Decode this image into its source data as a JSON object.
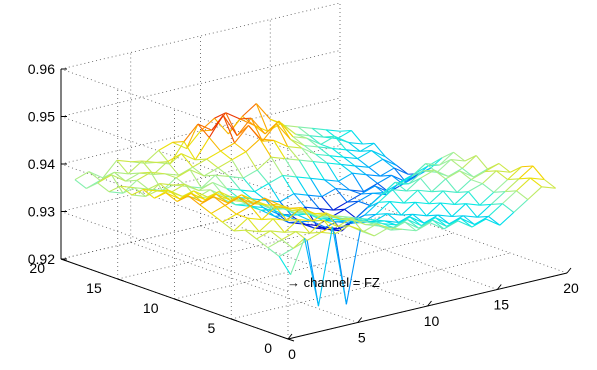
{
  "chart_data": {
    "type": "surface-mesh",
    "zlim": [
      0.92,
      0.96
    ],
    "z_ticks": [
      "0.92",
      "0.93",
      "0.94",
      "0.95",
      "0.96"
    ],
    "x_ticks": [
      "0",
      "5",
      "10",
      "15",
      "20"
    ],
    "y_ticks": [
      "0",
      "5",
      "10",
      "15",
      "20"
    ],
    "xlim": [
      0,
      20
    ],
    "ylim": [
      0,
      20
    ],
    "grid": true,
    "colormap": [
      "#0000cc",
      "#00a0ff",
      "#00e8e8",
      "#a0f0a0",
      "#f0e000",
      "#ff9000",
      "#e00000"
    ],
    "annotation": "→ channel = FZ",
    "grid_size": 20,
    "surface_rows_note": "approximate surface, rows indexed by y = 1..20 from back to front, columns x = 1..20",
    "z_values": [
      [
        0.936,
        0.937,
        0.935,
        0.938,
        0.937,
        0.936,
        0.938,
        0.939,
        0.937,
        0.94,
        0.942,
        0.938,
        0.941,
        0.943,
        0.939,
        0.937,
        0.936,
        0.935,
        0.934,
        0.933
      ],
      [
        0.935,
        0.936,
        0.937,
        0.936,
        0.938,
        0.937,
        0.936,
        0.94,
        0.943,
        0.941,
        0.944,
        0.942,
        0.94,
        0.938,
        0.939,
        0.936,
        0.935,
        0.934,
        0.933,
        0.934
      ],
      [
        0.937,
        0.938,
        0.936,
        0.937,
        0.936,
        0.938,
        0.939,
        0.937,
        0.941,
        0.945,
        0.94,
        0.943,
        0.939,
        0.941,
        0.937,
        0.936,
        0.934,
        0.935,
        0.933,
        0.932
      ],
      [
        0.936,
        0.935,
        0.937,
        0.938,
        0.937,
        0.936,
        0.937,
        0.938,
        0.939,
        0.94,
        0.943,
        0.939,
        0.942,
        0.938,
        0.936,
        0.935,
        0.934,
        0.933,
        0.932,
        0.933
      ],
      [
        0.938,
        0.937,
        0.936,
        0.935,
        0.937,
        0.938,
        0.936,
        0.937,
        0.938,
        0.939,
        0.941,
        0.94,
        0.938,
        0.937,
        0.935,
        0.934,
        0.933,
        0.932,
        0.933,
        0.931
      ],
      [
        0.937,
        0.936,
        0.938,
        0.937,
        0.936,
        0.935,
        0.937,
        0.936,
        0.935,
        0.936,
        0.938,
        0.937,
        0.936,
        0.935,
        0.934,
        0.933,
        0.932,
        0.931,
        0.932,
        0.93
      ],
      [
        0.939,
        0.938,
        0.937,
        0.938,
        0.936,
        0.937,
        0.935,
        0.934,
        0.933,
        0.934,
        0.935,
        0.934,
        0.933,
        0.932,
        0.931,
        0.932,
        0.931,
        0.93,
        0.931,
        0.929
      ],
      [
        0.938,
        0.939,
        0.937,
        0.936,
        0.937,
        0.935,
        0.934,
        0.933,
        0.932,
        0.931,
        0.932,
        0.931,
        0.93,
        0.931,
        0.93,
        0.929,
        0.93,
        0.931,
        0.929,
        0.93
      ],
      [
        0.94,
        0.938,
        0.939,
        0.937,
        0.936,
        0.934,
        0.933,
        0.932,
        0.93,
        0.929,
        0.93,
        0.929,
        0.928,
        0.929,
        0.93,
        0.931,
        0.929,
        0.93,
        0.931,
        0.932
      ],
      [
        0.939,
        0.94,
        0.938,
        0.939,
        0.937,
        0.935,
        0.933,
        0.931,
        0.929,
        0.928,
        0.927,
        0.928,
        0.929,
        0.93,
        0.931,
        0.93,
        0.932,
        0.933,
        0.934,
        0.935
      ],
      [
        0.941,
        0.939,
        0.94,
        0.938,
        0.937,
        0.936,
        0.934,
        0.932,
        0.93,
        0.928,
        0.927,
        0.926,
        0.928,
        0.93,
        0.932,
        0.933,
        0.934,
        0.936,
        0.935,
        0.937
      ],
      [
        0.94,
        0.941,
        0.939,
        0.94,
        0.938,
        0.936,
        0.935,
        0.933,
        0.931,
        0.929,
        0.928,
        0.929,
        0.931,
        0.933,
        0.935,
        0.934,
        0.936,
        0.935,
        0.937,
        0.936
      ],
      [
        0.939,
        0.94,
        0.941,
        0.939,
        0.938,
        0.937,
        0.935,
        0.934,
        0.932,
        0.931,
        0.93,
        0.931,
        0.933,
        0.935,
        0.934,
        0.936,
        0.937,
        0.935,
        0.936,
        0.938
      ],
      [
        0.938,
        0.939,
        0.94,
        0.941,
        0.939,
        0.937,
        0.936,
        0.934,
        0.933,
        0.932,
        0.931,
        0.932,
        0.934,
        0.933,
        0.935,
        0.934,
        0.936,
        0.937,
        0.935,
        0.936
      ],
      [
        0.937,
        0.939,
        0.938,
        0.94,
        0.939,
        0.938,
        0.936,
        0.935,
        0.934,
        0.933,
        0.932,
        0.933,
        0.932,
        0.934,
        0.933,
        0.935,
        0.934,
        0.936,
        0.937,
        0.938
      ],
      [
        0.938,
        0.937,
        0.939,
        0.938,
        0.94,
        0.938,
        0.937,
        0.936,
        0.935,
        0.934,
        0.933,
        0.932,
        0.933,
        0.932,
        0.934,
        0.933,
        0.935,
        0.936,
        0.938,
        0.937
      ],
      [
        0.937,
        0.938,
        0.937,
        0.939,
        0.938,
        0.939,
        0.937,
        0.936,
        0.935,
        0.934,
        0.933,
        0.934,
        0.932,
        0.933,
        0.932,
        0.934,
        0.933,
        0.935,
        0.937,
        0.939
      ],
      [
        0.936,
        0.937,
        0.938,
        0.937,
        0.939,
        0.937,
        0.938,
        0.936,
        0.935,
        0.934,
        0.935,
        0.933,
        0.934,
        0.932,
        0.933,
        0.932,
        0.934,
        0.936,
        0.938,
        0.94
      ],
      [
        0.935,
        0.936,
        0.937,
        0.938,
        0.937,
        0.938,
        0.936,
        0.937,
        0.935,
        0.936,
        0.934,
        0.935,
        0.933,
        0.934,
        0.932,
        0.933,
        0.935,
        0.937,
        0.939,
        0.938
      ],
      [
        0.932,
        0.939,
        0.924,
        0.94,
        0.923,
        0.938,
        0.936,
        0.937,
        0.936,
        0.935,
        0.936,
        0.934,
        0.935,
        0.933,
        0.934,
        0.932,
        0.934,
        0.936,
        0.938,
        0.937
      ]
    ]
  }
}
